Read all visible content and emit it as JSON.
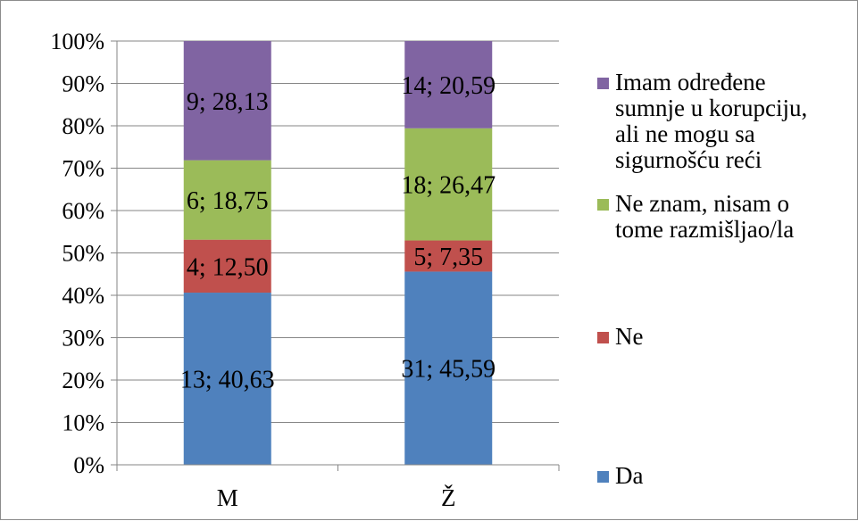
{
  "chart_data": {
    "type": "bar",
    "stacked": true,
    "percent_stacked": true,
    "categories": [
      "M",
      "Ž"
    ],
    "series": [
      {
        "name": "Da",
        "color": "#4f81bd",
        "values": [
          40.63,
          45.59
        ],
        "counts": [
          13,
          31
        ],
        "labels": [
          "13; 40,63",
          "31; 45,59"
        ]
      },
      {
        "name": "Ne",
        "color": "#c0504d",
        "values": [
          12.5,
          7.35
        ],
        "counts": [
          4,
          5
        ],
        "labels": [
          "4; 12,50",
          "5; 7,35"
        ]
      },
      {
        "name": "Ne znam, nisam o tome razmišljao/la",
        "color": "#9bbb59",
        "values": [
          18.75,
          26.47
        ],
        "counts": [
          6,
          18
        ],
        "labels": [
          "6; 18,75",
          "18; 26,47"
        ]
      },
      {
        "name": "Imam određene sumnje u korupciju, ali ne mogu sa sigurnošću reći",
        "color": "#8064a2",
        "values": [
          28.13,
          20.59
        ],
        "counts": [
          9,
          14
        ],
        "labels": [
          "9; 28,13",
          "14; 20,59"
        ]
      }
    ],
    "ylim": [
      0,
      100
    ],
    "y_ticks": [
      "0%",
      "10%",
      "20%",
      "30%",
      "40%",
      "50%",
      "60%",
      "70%",
      "80%",
      "90%",
      "100%"
    ],
    "grid": true,
    "legend_position": "right",
    "legend_order": [
      "Imam određene sumnje u korupciju, ali ne mogu sa sigurnošću reći",
      "Ne znam, nisam o tome razmišljao/la",
      "Ne",
      "Da"
    ],
    "legend_lines": [
      [
        "Imam određene",
        "sumnje u korupciju,",
        "ali ne mogu sa",
        "sigurnošću reći"
      ],
      [
        "Ne znam, nisam o",
        "tome razmišljao/la"
      ],
      [
        "Ne"
      ],
      [
        "Da"
      ]
    ],
    "title": "",
    "xlabel": "",
    "ylabel": "",
    "gridline_color": "#868686"
  }
}
